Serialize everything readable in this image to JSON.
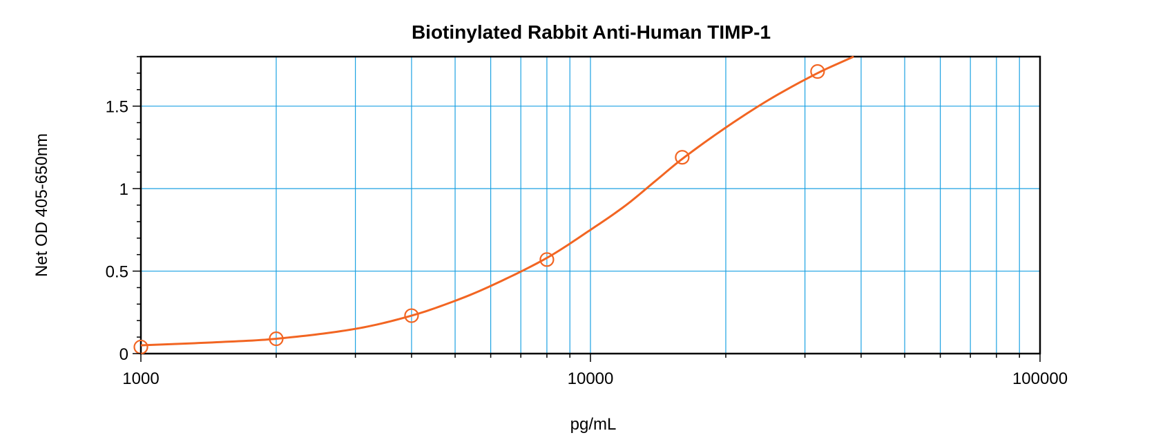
{
  "chart_data": {
    "type": "scatter",
    "title": "Biotinylated Rabbit Anti-Human TIMP-1",
    "xlabel": "pg/mL",
    "ylabel": "Net OD 405-650nm",
    "x_scale": "log",
    "xlim": [
      1000,
      100000
    ],
    "ylim": [
      0,
      1.8
    ],
    "x_ticks": [
      "1000",
      "10000",
      "100000"
    ],
    "y_ticks": [
      "0",
      "0.5",
      "1",
      "1.5"
    ],
    "grid": true,
    "colors": {
      "series": "#f26522",
      "grid": "#1ba1e2",
      "axis": "#000000"
    },
    "series": [
      {
        "points": [
          {
            "x": 1000,
            "y": 0.04
          },
          {
            "x": 2000,
            "y": 0.09
          },
          {
            "x": 4000,
            "y": 0.23
          },
          {
            "x": 8000,
            "y": 0.57
          },
          {
            "x": 16000,
            "y": 1.19
          },
          {
            "x": 32000,
            "y": 1.71
          }
        ],
        "fit_curve": {
          "x": [
            1000,
            1500,
            2000,
            3000,
            4000,
            5000,
            6000,
            8000,
            10000,
            12000,
            14000,
            16000,
            20000,
            25000,
            32000,
            38500
          ],
          "y": [
            0.05,
            0.07,
            0.09,
            0.15,
            0.23,
            0.32,
            0.41,
            0.58,
            0.75,
            0.9,
            1.05,
            1.18,
            1.37,
            1.54,
            1.7,
            1.8
          ]
        }
      }
    ]
  }
}
